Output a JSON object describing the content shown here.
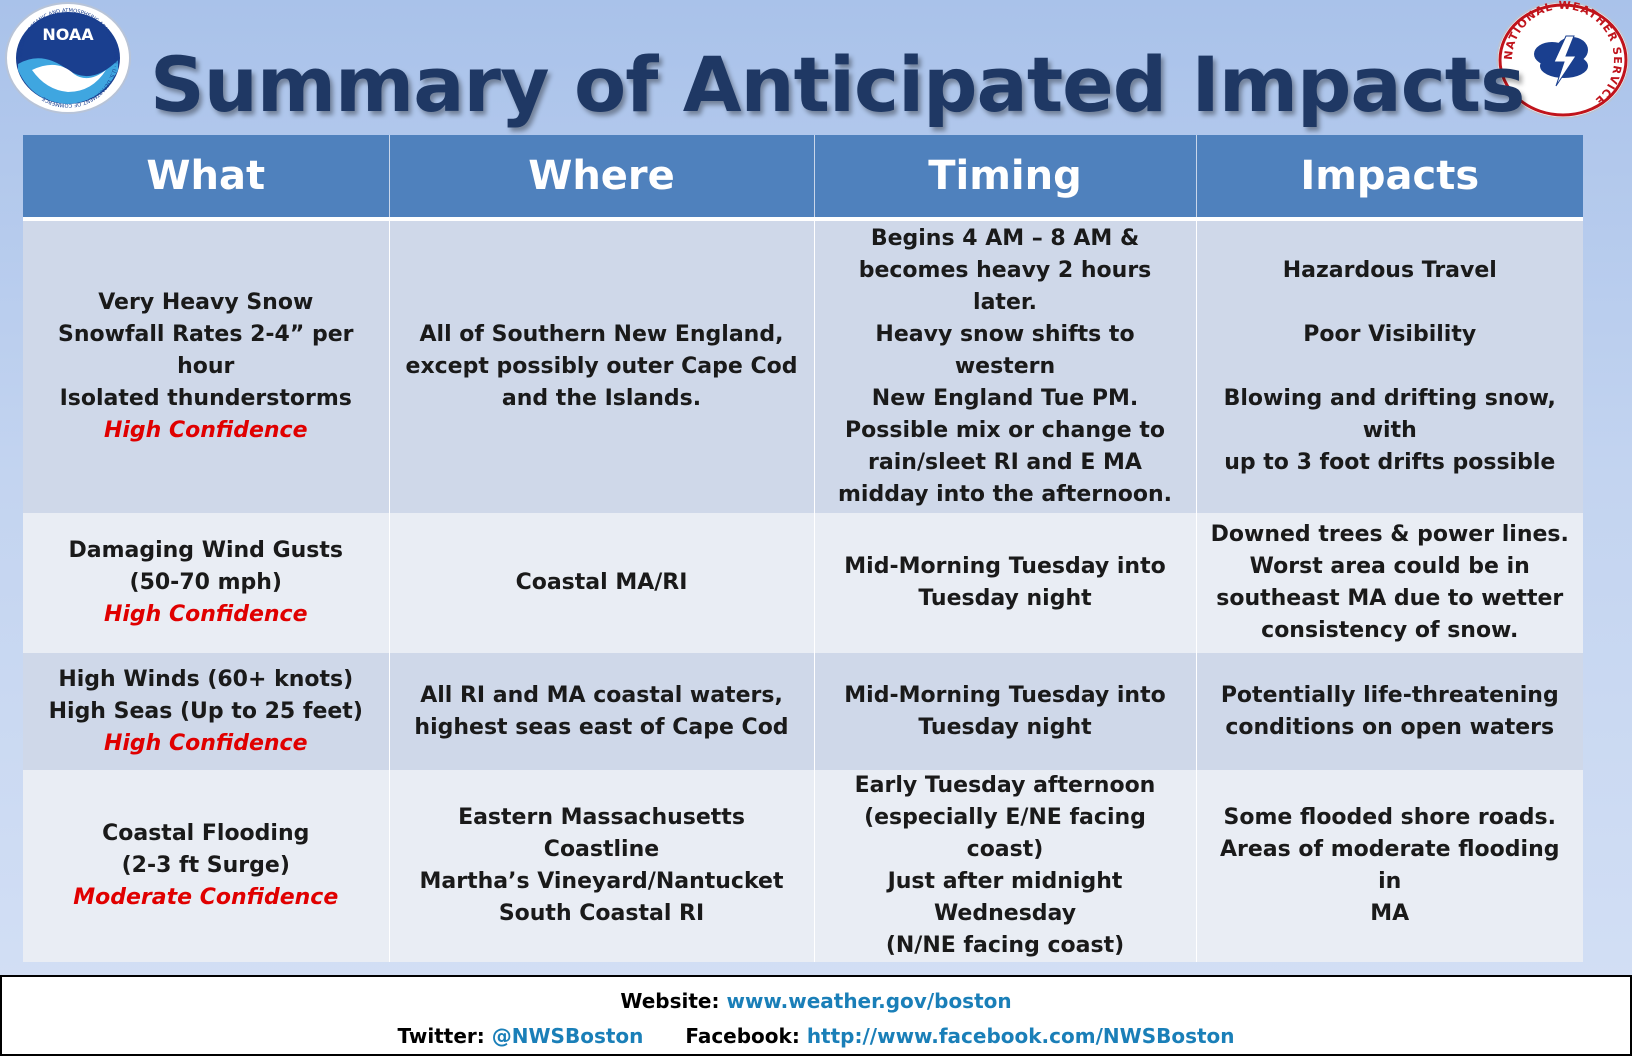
{
  "title": "Summary of Anticipated Impacts",
  "logos": {
    "left": {
      "icon": "noaa-logo-icon",
      "text": "NOAA",
      "ring_text": "NATIONAL OCEANIC AND ATMOSPHERIC ADMINISTRATION · U.S. DEPARTMENT OF COMMERCE"
    },
    "right": {
      "icon": "nws-logo-icon",
      "ring_text": "NATIONAL WEATHER SERVICE"
    }
  },
  "table": {
    "headers": [
      "What",
      "Where",
      "Timing",
      "Impacts"
    ],
    "rows": [
      {
        "what": [
          "Very Heavy Snow",
          "Snowfall Rates 2-4” per hour",
          "Isolated thunderstorms"
        ],
        "confidence": "High Confidence",
        "where": [
          "All of Southern New England,",
          "except possibly outer Cape Cod",
          "and the Islands."
        ],
        "timing": [
          "Begins 4 AM – 8 AM &",
          "becomes heavy 2 hours later.",
          "Heavy snow shifts to western",
          "New England Tue PM.",
          "Possible mix or change to",
          "rain/sleet RI and E MA",
          "midday into the afternoon."
        ],
        "impacts": [
          "Hazardous Travel",
          "",
          "Poor Visibility",
          "",
          "Blowing and drifting snow, with",
          "up to 3 foot drifts possible"
        ]
      },
      {
        "what": [
          "Damaging Wind Gusts",
          "(50-70 mph)"
        ],
        "confidence": "High Confidence",
        "where": [
          "Coastal MA/RI"
        ],
        "timing": [
          "Mid-Morning Tuesday into",
          "Tuesday night"
        ],
        "impacts": [
          "Downed trees & power lines.",
          "Worst area could be in",
          "southeast MA due to wetter",
          "consistency of snow."
        ]
      },
      {
        "what": [
          "High Winds (60+ knots)",
          "High Seas (Up to 25 feet)"
        ],
        "confidence": "High Confidence",
        "where": [
          "All RI and MA coastal waters,",
          "highest seas east of Cape Cod"
        ],
        "timing": [
          "Mid-Morning Tuesday into",
          "Tuesday night"
        ],
        "impacts": [
          "Potentially life-threatening",
          "conditions on open waters"
        ]
      },
      {
        "what": [
          "Coastal Flooding",
          "(2-3 ft Surge)"
        ],
        "confidence": "Moderate Confidence",
        "where": [
          "Eastern Massachusetts Coastline",
          "Martha’s Vineyard/Nantucket",
          "South Coastal RI"
        ],
        "timing": [
          "Early Tuesday afternoon",
          "(especially E/NE facing coast)",
          "Just after midnight Wednesday",
          "(N/NE facing coast)"
        ],
        "impacts": [
          "Some flooded shore roads.",
          "Areas of moderate flooding in",
          "MA"
        ]
      }
    ]
  },
  "footer": {
    "website_label": "Website:",
    "website_url": "www.weather.gov/boston",
    "twitter_label": "Twitter:",
    "twitter_handle": "@NWSBoston",
    "facebook_label": "Facebook:",
    "facebook_url": "http://www.facebook.com/NWSBoston"
  },
  "colors": {
    "header_blue": "#4f81bd",
    "title_navy": "#1f3864",
    "confidence_red": "#e00000",
    "link_blue": "#1a7fb8",
    "row_dark": "#cfd8e9",
    "row_light": "#e9edf4"
  }
}
